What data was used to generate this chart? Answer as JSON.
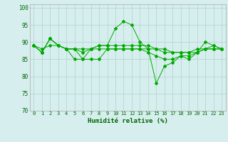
{
  "xlabel": "Humidité relative (%)",
  "xlim": [
    -0.5,
    23.5
  ],
  "ylim": [
    70,
    101
  ],
  "yticks": [
    70,
    75,
    80,
    85,
    90,
    95,
    100
  ],
  "xticks": [
    0,
    1,
    2,
    3,
    4,
    5,
    6,
    7,
    8,
    9,
    10,
    11,
    12,
    13,
    14,
    15,
    16,
    17,
    18,
    19,
    20,
    21,
    22,
    23
  ],
  "background_color": "#d6eeee",
  "grid_color": "#b0d4cc",
  "line_color": "#00aa00",
  "series": [
    [
      89,
      87,
      91,
      89,
      88,
      88,
      85,
      88,
      89,
      89,
      94,
      96,
      95,
      90,
      88,
      78,
      83,
      84,
      86,
      85,
      87,
      90,
      89,
      88
    ],
    [
      89,
      87,
      91,
      89,
      88,
      88,
      88,
      88,
      89,
      89,
      89,
      89,
      89,
      89,
      89,
      88,
      87,
      87,
      87,
      87,
      87,
      88,
      88,
      88
    ],
    [
      89,
      88,
      89,
      89,
      88,
      88,
      87,
      88,
      88,
      88,
      88,
      88,
      88,
      88,
      88,
      88,
      88,
      87,
      87,
      87,
      88,
      88,
      88,
      88
    ],
    [
      89,
      87,
      91,
      89,
      88,
      85,
      85,
      85,
      85,
      88,
      88,
      88,
      88,
      88,
      87,
      86,
      85,
      85,
      86,
      86,
      87,
      88,
      89,
      88
    ]
  ]
}
